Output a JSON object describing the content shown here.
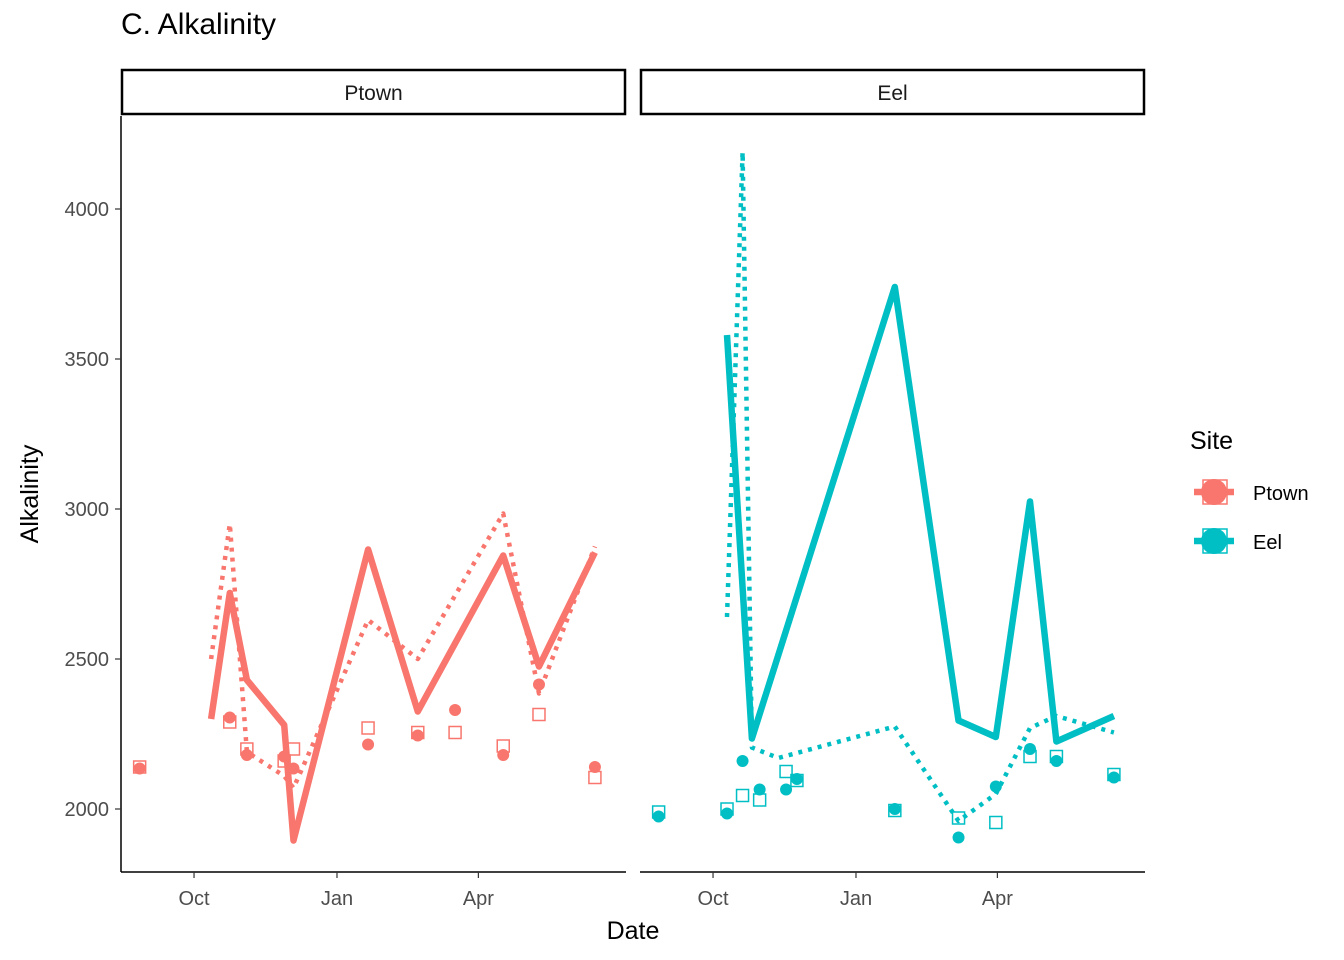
{
  "chart_data": {
    "type": "line",
    "title": "C. Alkalinity",
    "xlabel": "Date",
    "ylabel": "Alkalinity",
    "ylim": [
      1790,
      4310
    ],
    "yticks": [
      2000,
      2500,
      3000,
      3500,
      4000
    ],
    "xlim": [
      "2019-08-15",
      "2020-07-05"
    ],
    "xticks": [
      {
        "date": "2019-10-01",
        "label": "Oct"
      },
      {
        "date": "2020-01-01",
        "label": "Jan"
      },
      {
        "date": "2020-04-01",
        "label": "Apr"
      }
    ],
    "legend": {
      "title": "Site",
      "position": "right",
      "entries": [
        "Ptown",
        "Eel"
      ]
    },
    "grid": false,
    "panels": [
      {
        "name": "Ptown",
        "color": "#F8766D",
        "solid_line": {
          "x": [
            "2019-10-12",
            "2019-10-24",
            "2019-11-04",
            "2019-11-28",
            "2019-12-04",
            "2020-01-21",
            "2020-02-22",
            "2020-04-17",
            "2020-05-10",
            "2020-06-15"
          ],
          "y": [
            2300,
            2720,
            2430,
            2280,
            1895,
            2865,
            2325,
            2845,
            2475,
            2855
          ]
        },
        "dotted_line": {
          "x": [
            "2019-10-12",
            "2019-10-24",
            "2019-11-04",
            "2019-11-28",
            "2019-12-04",
            "2020-01-21",
            "2020-02-22",
            "2020-04-17",
            "2020-05-10",
            "2020-06-15"
          ],
          "y": [
            2500,
            2950,
            2190,
            2110,
            2070,
            2630,
            2500,
            2985,
            2385,
            2875
          ]
        },
        "circles": {
          "x": [
            "2019-08-27",
            "2019-10-24",
            "2019-11-04",
            "2019-11-28",
            "2019-12-04",
            "2020-01-21",
            "2020-02-22",
            "2020-03-17",
            "2020-04-17",
            "2020-05-10",
            "2020-06-15"
          ],
          "y": [
            2135,
            2305,
            2180,
            2175,
            2135,
            2215,
            2245,
            2330,
            2180,
            2415,
            2140
          ]
        },
        "squares": {
          "x": [
            "2019-08-27",
            "2019-10-24",
            "2019-11-04",
            "2019-11-28",
            "2019-12-04",
            "2020-01-21",
            "2020-02-22",
            "2020-03-17",
            "2020-04-17",
            "2020-05-10",
            "2020-06-15"
          ],
          "y": [
            2140,
            2290,
            2200,
            2160,
            2200,
            2270,
            2255,
            2255,
            2210,
            2315,
            2105
          ]
        }
      },
      {
        "name": "Eel",
        "color": "#00BFC4",
        "solid_line": {
          "x": [
            "2019-10-10",
            "2019-10-26",
            "2020-01-26",
            "2020-03-07",
            "2020-03-31",
            "2020-04-22",
            "2020-05-09",
            "2020-06-15"
          ],
          "y": [
            3580,
            2235,
            3740,
            2295,
            2240,
            3025,
            2225,
            2310
          ]
        },
        "dotted_line": {
          "x": [
            "2019-10-10",
            "2019-10-20",
            "2019-10-26",
            "2019-11-12",
            "2020-01-26",
            "2020-03-07",
            "2020-03-31",
            "2020-04-22",
            "2020-05-09",
            "2020-06-15"
          ],
          "y": [
            2640,
            4190,
            2205,
            2170,
            2275,
            1960,
            2050,
            2270,
            2310,
            2255
          ]
        },
        "circles": {
          "x": [
            "2019-08-27",
            "2019-10-10",
            "2019-10-20",
            "2019-10-31",
            "2019-11-17",
            "2019-11-24",
            "2020-01-26",
            "2020-03-07",
            "2020-03-31",
            "2020-04-22",
            "2020-05-09",
            "2020-06-15"
          ],
          "y": [
            1975,
            1985,
            2160,
            2065,
            2065,
            2100,
            2000,
            1905,
            2075,
            2200,
            2160,
            2105
          ]
        },
        "squares": {
          "x": [
            "2019-08-27",
            "2019-10-10",
            "2019-10-20",
            "2019-10-31",
            "2019-11-17",
            "2019-11-24",
            "2020-01-26",
            "2020-03-07",
            "2020-03-31",
            "2020-04-22",
            "2020-05-09",
            "2020-06-15"
          ],
          "y": [
            1990,
            2000,
            2045,
            2030,
            2125,
            2095,
            1995,
            1970,
            1955,
            2175,
            2175,
            2115
          ]
        }
      }
    ]
  }
}
